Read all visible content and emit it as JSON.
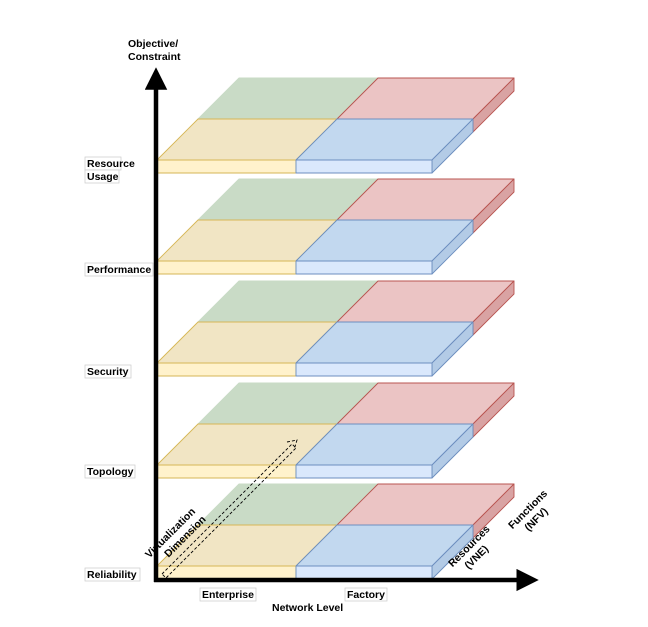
{
  "y_axis": {
    "title_line1": "Objective/",
    "title_line2": "Constraint"
  },
  "x_axis": {
    "title": "Network Level",
    "tick_enterprise": "Enterprise",
    "tick_factory": "Factory"
  },
  "depth_axis": {
    "label_line1": "Virtualization",
    "label_line2": "Dimension",
    "resources_line1": "Resources",
    "resources_line2": "(VNE)",
    "functions_line1": "Functions",
    "functions_line2": "(NFV)"
  },
  "layers": [
    {
      "label_line1": "Resource",
      "label_line2": "Usage"
    },
    {
      "label_line1": "Performance",
      "label_line2": ""
    },
    {
      "label_line1": "Security",
      "label_line2": ""
    },
    {
      "label_line1": "Topology",
      "label_line2": ""
    },
    {
      "label_line1": "Reliability",
      "label_line2": ""
    }
  ],
  "colors": {
    "yellow_top": "#f1e5c4",
    "yellow_front": "#fff2cc",
    "yellow_stroke": "#d6b656",
    "blue_top": "#c2d8ef",
    "blue_front": "#dae8fc",
    "blue_side": "#b3cbe6",
    "blue_stroke": "#6c8ebf",
    "green_top": "#c9dbc6",
    "red_top": "#ebc4c4",
    "red_side": "#d9a3a3",
    "red_stroke": "#b85450",
    "axis": "#000000"
  }
}
